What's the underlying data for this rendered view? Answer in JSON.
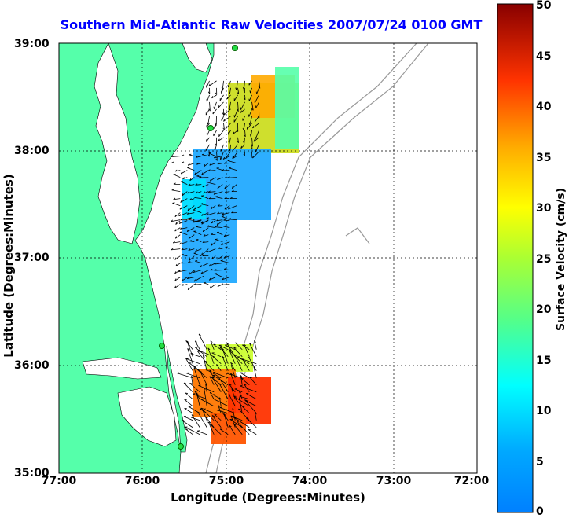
{
  "title": "Southern Mid-Atlantic Raw Velocities 2007/07/24 0100 GMT",
  "xlabel": "Longitude (Degrees:Minutes)",
  "ylabel": "Latitude (Degrees:Minutes)",
  "colorbar_label": "Surface Velocity (cm/s)",
  "x_ticks": [
    "77:00",
    "76:00",
    "75:00",
    "74:00",
    "73:00",
    "72:00"
  ],
  "y_ticks": [
    "39:00",
    "38:00",
    "37:00",
    "36:00",
    "35:00"
  ],
  "colorbar_ticks": [
    "50",
    "45",
    "40",
    "35",
    "30",
    "25",
    "20",
    "15",
    "10",
    "5",
    "0"
  ],
  "colors": {
    "title": "#0000ff",
    "land": "#55ffaa",
    "grid": "#000000",
    "bathymetry": "#999999",
    "arrows": "#000000"
  },
  "chart_data": {
    "type": "heatmap",
    "title": "Southern Mid-Atlantic Raw Velocities 2007/07/24 0100 GMT",
    "xlabel": "Longitude (Degrees:Minutes)",
    "ylabel": "Latitude (Degrees:Minutes)",
    "xlim": [
      -77.0,
      -72.0
    ],
    "ylim": [
      35.0,
      39.0
    ],
    "grid": true,
    "colorbar": {
      "label": "Surface Velocity (cm/s)",
      "range": [
        0,
        50
      ],
      "colormap": "jet"
    },
    "legend_position": "right",
    "stations": [
      {
        "lon": -75.09,
        "lat": 38.97
      },
      {
        "lon": -75.15,
        "lat": 38.23
      },
      {
        "lon": -75.74,
        "lat": 36.19
      },
      {
        "lon": -75.53,
        "lat": 35.26
      }
    ],
    "velocity_regions": [
      {
        "name_hint": "",
        "lon": [
          -75.2,
          -74.55
        ],
        "lat": [
          37.95,
          38.65
        ],
        "speed_range": [
          18,
          30
        ]
      },
      {
        "name_hint": "",
        "lon": [
          -75.55,
          -74.8
        ],
        "lat": [
          37.35,
          37.95
        ],
        "speed_range": [
          5,
          15
        ]
      },
      {
        "name_hint": "",
        "lon": [
          -75.55,
          -74.95
        ],
        "lat": [
          36.75,
          37.35
        ],
        "speed_range": [
          5,
          15
        ]
      },
      {
        "name_hint": "",
        "lon": [
          -75.4,
          -74.6
        ],
        "lat": [
          35.3,
          36.15
        ],
        "speed_range": [
          20,
          45
        ]
      }
    ]
  }
}
